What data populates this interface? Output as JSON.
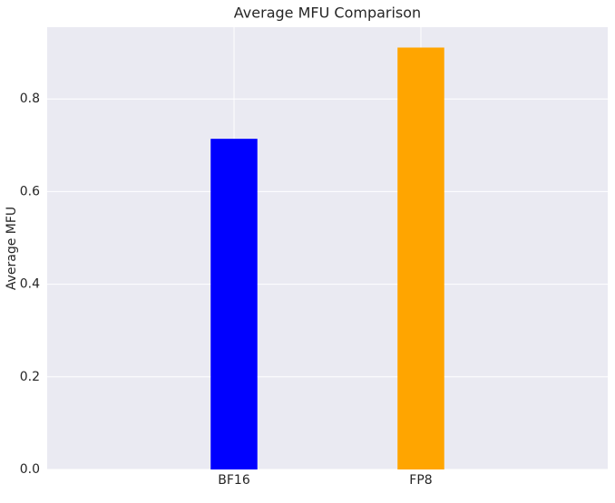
{
  "chart_data": {
    "type": "bar",
    "title": "Average MFU Comparison",
    "y_label": "Average MFU",
    "categories": [
      "BF16",
      "FP8"
    ],
    "values": [
      0.714,
      0.911
    ],
    "colors": [
      "#0000ff",
      "#ffa500"
    ],
    "ylim": [
      0,
      0.955
    ],
    "yticks": [
      0.0,
      0.2,
      0.4,
      0.6,
      0.8
    ],
    "grid": true
  }
}
